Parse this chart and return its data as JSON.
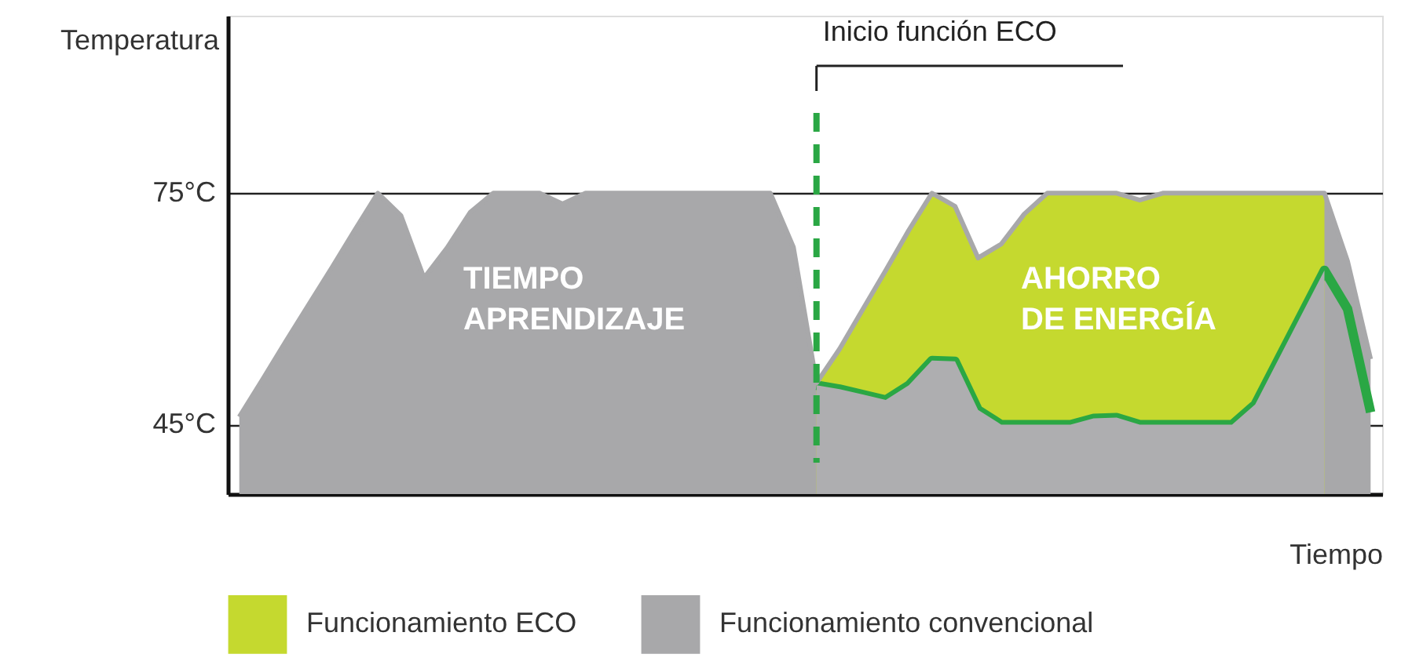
{
  "chart_data": {
    "type": "area",
    "ylabel": "Temperatura",
    "xlabel": "Tiempo",
    "categories": [
      null,
      null,
      null,
      null,
      null,
      null,
      null,
      null,
      null,
      null,
      null,
      null,
      null,
      null,
      null,
      null,
      null,
      null,
      null,
      null,
      null,
      null,
      null,
      null,
      null,
      null,
      null,
      null,
      null,
      null,
      null,
      null,
      null,
      null,
      null,
      null,
      null,
      null,
      null,
      null,
      null,
      null,
      null,
      null,
      null,
      null,
      null,
      null,
      null,
      null
    ],
    "ylim": [
      36,
      98
    ],
    "yticks": [
      {
        "value": 45,
        "label": "45°C"
      },
      {
        "value": 75,
        "label": "75°C"
      }
    ],
    "grid": "y",
    "legend": "bottom",
    "series": [
      {
        "name": "Funcionamiento convencional",
        "color": "#a8a8aa",
        "values": [
          46,
          50.8,
          55.7,
          60.5,
          65.3,
          70.2,
          75,
          72.1,
          64.0,
          67.9,
          72.5,
          75,
          75,
          75,
          73.6,
          75,
          75,
          75,
          75,
          75,
          75,
          75,
          75,
          75,
          68.0,
          50.4,
          54.8,
          59.9,
          65.0,
          70.2,
          75,
          73.3,
          66.6,
          68.4,
          72.3,
          75,
          75,
          75,
          75,
          74.1,
          75,
          75,
          75,
          75,
          75,
          75,
          75,
          75,
          66.2,
          53.5
        ]
      },
      {
        "name": "Funcionamiento ECO",
        "color": "#c5d92f",
        "values": [
          null,
          null,
          null,
          null,
          null,
          null,
          null,
          null,
          null,
          null,
          null,
          null,
          null,
          null,
          null,
          null,
          null,
          null,
          null,
          null,
          null,
          null,
          null,
          null,
          null,
          50.4,
          54.8,
          59.9,
          65.0,
          70.2,
          75,
          73.3,
          66.6,
          68.4,
          72.3,
          75,
          75,
          75,
          75,
          74.1,
          75,
          75,
          75,
          75,
          75,
          75,
          75,
          75,
          null,
          null
        ]
      },
      {
        "type": "line",
        "color": "#2aa744",
        "values": [
          null,
          null,
          null,
          null,
          null,
          null,
          null,
          null,
          null,
          null,
          null,
          null,
          null,
          null,
          null,
          null,
          null,
          null,
          null,
          null,
          null,
          null,
          null,
          null,
          null,
          50.1,
          49.6,
          48.9,
          48.2,
          50.1,
          53.3,
          53.2,
          46.9,
          45,
          45,
          45,
          45,
          45.8,
          45.9,
          45,
          45,
          45,
          45,
          45,
          47.6,
          53.4,
          59.2,
          65.0,
          60.0,
          46.6
        ]
      },
      {
        "color": "#aeaeb0",
        "values": [
          null,
          null,
          null,
          null,
          null,
          null,
          null,
          null,
          null,
          null,
          null,
          null,
          null,
          null,
          null,
          null,
          null,
          null,
          null,
          null,
          null,
          null,
          null,
          null,
          null,
          50.1,
          49.6,
          48.9,
          48.2,
          50.1,
          53.3,
          53.2,
          46.9,
          45,
          45,
          45,
          45,
          45.8,
          45.9,
          45,
          45,
          45,
          45,
          45,
          47.6,
          53.4,
          59.2,
          65.0,
          null,
          null
        ]
      }
    ],
    "ref_lines": [
      {
        "axis": "x",
        "label": "Inicio función ECO",
        "color": "#2aa744",
        "line_style": "dashed"
      }
    ],
    "annotations": [
      "TIEMPO\nAPRENDIZAJE",
      "AHORRO\nDE ENERGÍA"
    ]
  }
}
